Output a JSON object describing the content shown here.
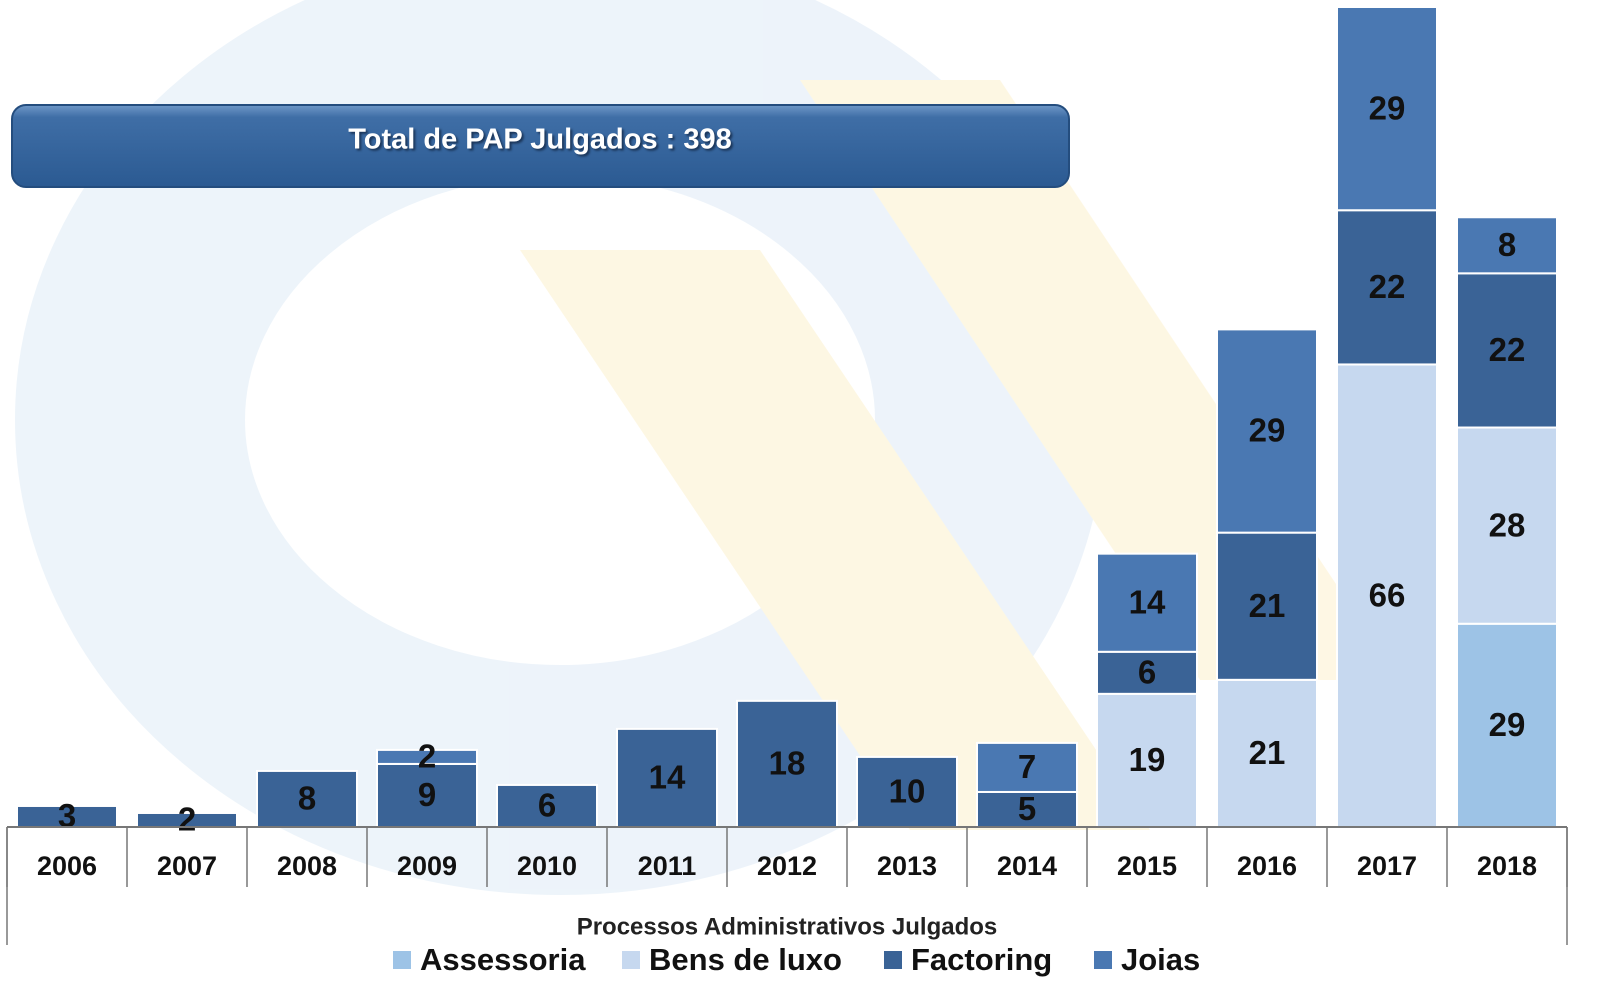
{
  "chart_data": {
    "type": "stacked-bar",
    "title": "Total de PAP Julgados : 398",
    "x_axis_label": "Processos Administrativos Julgados",
    "categories": [
      "2006",
      "2007",
      "2008",
      "2009",
      "2010",
      "2011",
      "2012",
      "2013",
      "2014",
      "2015",
      "2016",
      "2017",
      "2018"
    ],
    "series": [
      {
        "name": "Assessoria",
        "color": "#9dc3e6",
        "values": [
          null,
          null,
          null,
          null,
          null,
          null,
          null,
          null,
          null,
          null,
          null,
          null,
          29
        ]
      },
      {
        "name": "Bens de luxo",
        "color": "#c6d8ef",
        "values": [
          null,
          null,
          null,
          null,
          null,
          null,
          null,
          null,
          null,
          19,
          21,
          66,
          28
        ]
      },
      {
        "name": "Factoring",
        "color": "#3a6396",
        "values": [
          3,
          2,
          8,
          9,
          6,
          14,
          18,
          10,
          5,
          6,
          21,
          22,
          22
        ]
      },
      {
        "name": "Joias",
        "color": "#4a78b2",
        "values": [
          null,
          null,
          null,
          2,
          null,
          null,
          null,
          null,
          7,
          14,
          29,
          29,
          8
        ]
      }
    ],
    "ylim": [
      0,
      117
    ]
  }
}
